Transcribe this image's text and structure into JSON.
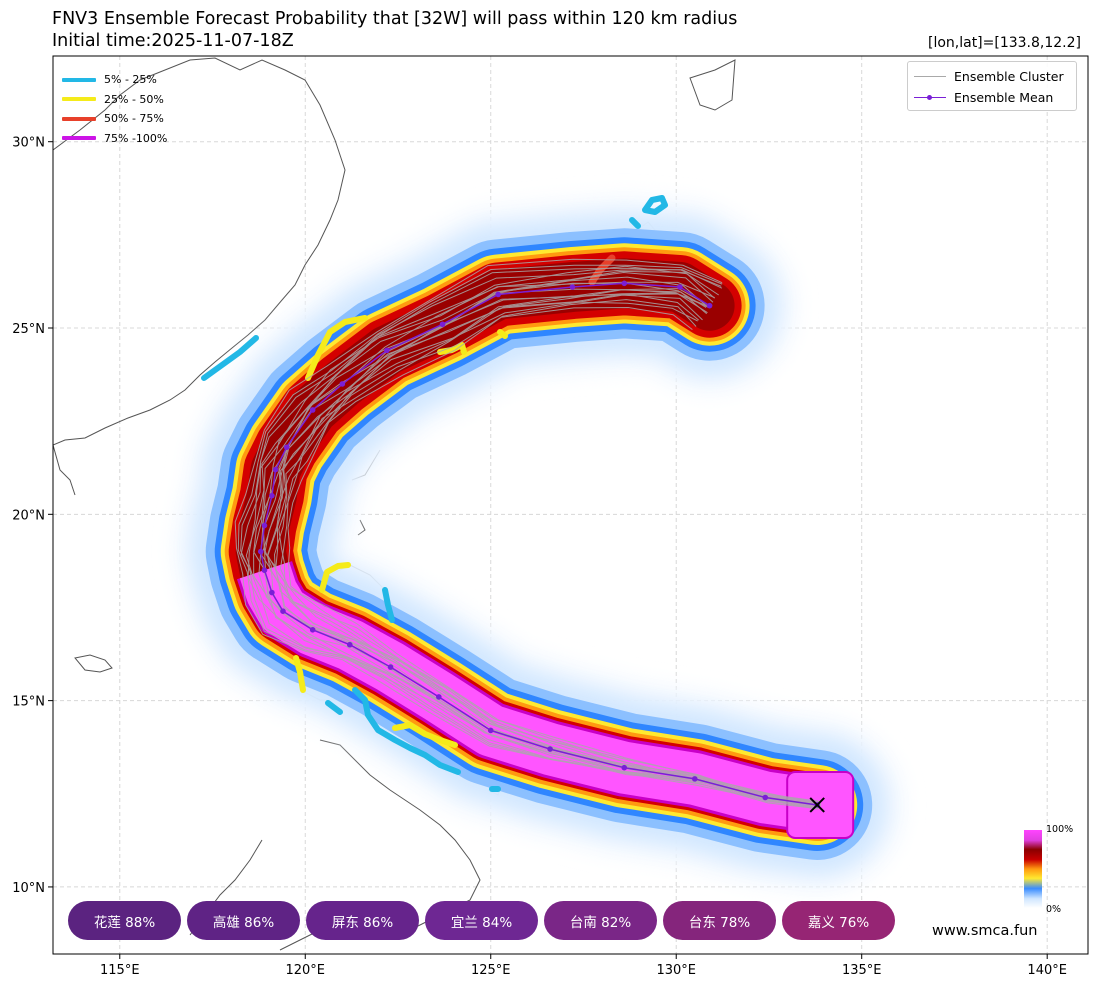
{
  "header": {
    "title_line1": "FNV3 Ensemble Forecast Probability that [32W] will pass within 120 km radius",
    "title_line2": "Initial time:2025-11-07-18Z",
    "coord_label": "[lon,lat]=[133.8,12.2]"
  },
  "prob_legend": [
    {
      "label": "5% - 25%",
      "color": "#22b8e6"
    },
    {
      "label": "25% - 50%",
      "color": "#f5eb1a"
    },
    {
      "label": "50% - 75%",
      "color": "#e8402a"
    },
    {
      "label": "75% -100%",
      "color": "#cc14e6"
    }
  ],
  "ensemble_legend": {
    "cluster_label": "Ensemble Cluster",
    "cluster_color": "#a9a9a9",
    "mean_label": "Ensemble Mean",
    "mean_color": "#7a1fd6"
  },
  "colorbar": {
    "max_label": "100%",
    "min_label": "0%"
  },
  "city_probabilities": [
    {
      "label": "花莲 88%",
      "color": "#5b2380"
    },
    {
      "label": "高雄 86%",
      "color": "#5f2385"
    },
    {
      "label": "屏东 86%",
      "color": "#66248c"
    },
    {
      "label": "宜兰 84%",
      "color": "#6e2793"
    },
    {
      "label": "台南 82%",
      "color": "#7a2687"
    },
    {
      "label": "台东 78%",
      "color": "#85257c"
    },
    {
      "label": "嘉义 76%",
      "color": "#962574"
    }
  ],
  "website": "www.smca.fun",
  "chart_data": {
    "type": "map",
    "x_axis": {
      "ticks": [
        "115°E",
        "120°E",
        "125°E",
        "130°E",
        "135°E",
        "140°E"
      ],
      "values": [
        115,
        120,
        125,
        130,
        135,
        140
      ],
      "range": [
        113.2,
        141.1
      ]
    },
    "y_axis": {
      "ticks": [
        "10°N",
        "15°N",
        "20°N",
        "25°N",
        "30°N"
      ],
      "values": [
        10,
        15,
        20,
        25,
        30
      ],
      "range": [
        8.2,
        32.3
      ]
    },
    "grid": true,
    "legend_position": "top-left and top-right",
    "initial_position": {
      "lon": 133.8,
      "lat": 12.2
    },
    "ensemble_mean_track": [
      [
        133.8,
        12.2
      ],
      [
        132.4,
        12.4
      ],
      [
        130.5,
        12.9
      ],
      [
        128.6,
        13.2
      ],
      [
        126.6,
        13.7
      ],
      [
        125.0,
        14.2
      ],
      [
        123.6,
        15.1
      ],
      [
        122.3,
        15.9
      ],
      [
        121.2,
        16.5
      ],
      [
        120.2,
        16.9
      ],
      [
        119.4,
        17.4
      ],
      [
        119.1,
        17.9
      ],
      [
        118.9,
        18.5
      ],
      [
        118.8,
        19.0
      ],
      [
        118.9,
        19.7
      ],
      [
        119.1,
        20.5
      ],
      [
        119.2,
        21.2
      ],
      [
        119.5,
        21.8
      ],
      [
        120.2,
        22.8
      ],
      [
        121.0,
        23.5
      ],
      [
        122.2,
        24.4
      ],
      [
        123.7,
        25.1
      ],
      [
        125.2,
        25.9
      ],
      [
        127.2,
        26.1
      ],
      [
        128.6,
        26.2
      ],
      [
        130.1,
        26.1
      ],
      [
        130.9,
        25.6
      ]
    ]
  }
}
